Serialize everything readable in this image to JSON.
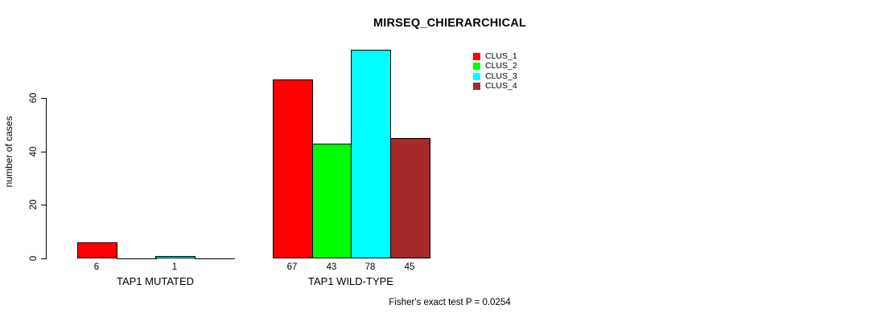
{
  "page": {
    "background_color": "#ffffff",
    "text_color": "#000000"
  },
  "chart_data": {
    "type": "bar",
    "grouped": true,
    "title": "MIRSEQ_CHIERARCHICAL",
    "xlabel": "",
    "ylabel": "number of cases",
    "categories": [
      "TAP1 MUTATED",
      "TAP1 WILD-TYPE"
    ],
    "series": [
      {
        "name": "CLUS_1",
        "color": "#ff0000",
        "values": [
          6,
          67
        ]
      },
      {
        "name": "CLUS_2",
        "color": "#00ff00",
        "values": [
          0,
          43
        ]
      },
      {
        "name": "CLUS_3",
        "color": "#00ffff",
        "values": [
          1,
          78
        ]
      },
      {
        "name": "CLUS_4",
        "color": "#a52a2a",
        "values": [
          0,
          45
        ]
      }
    ],
    "bar_value_labels": {
      "shown": true,
      "only_nonzero": true
    },
    "yticks": [
      0,
      20,
      40,
      60
    ],
    "ylim": [
      0,
      80
    ],
    "grid": "off",
    "legend": {
      "position": "top-right",
      "entries": [
        {
          "label": "CLUS_1",
          "color": "#ff0000"
        },
        {
          "label": "CLUS_2",
          "color": "#00ff00"
        },
        {
          "label": "CLUS_3",
          "color": "#00ffff"
        },
        {
          "label": "CLUS_4",
          "color": "#a52a2a"
        }
      ]
    },
    "annotation": "Fisher's exact test P = 0.0254"
  }
}
